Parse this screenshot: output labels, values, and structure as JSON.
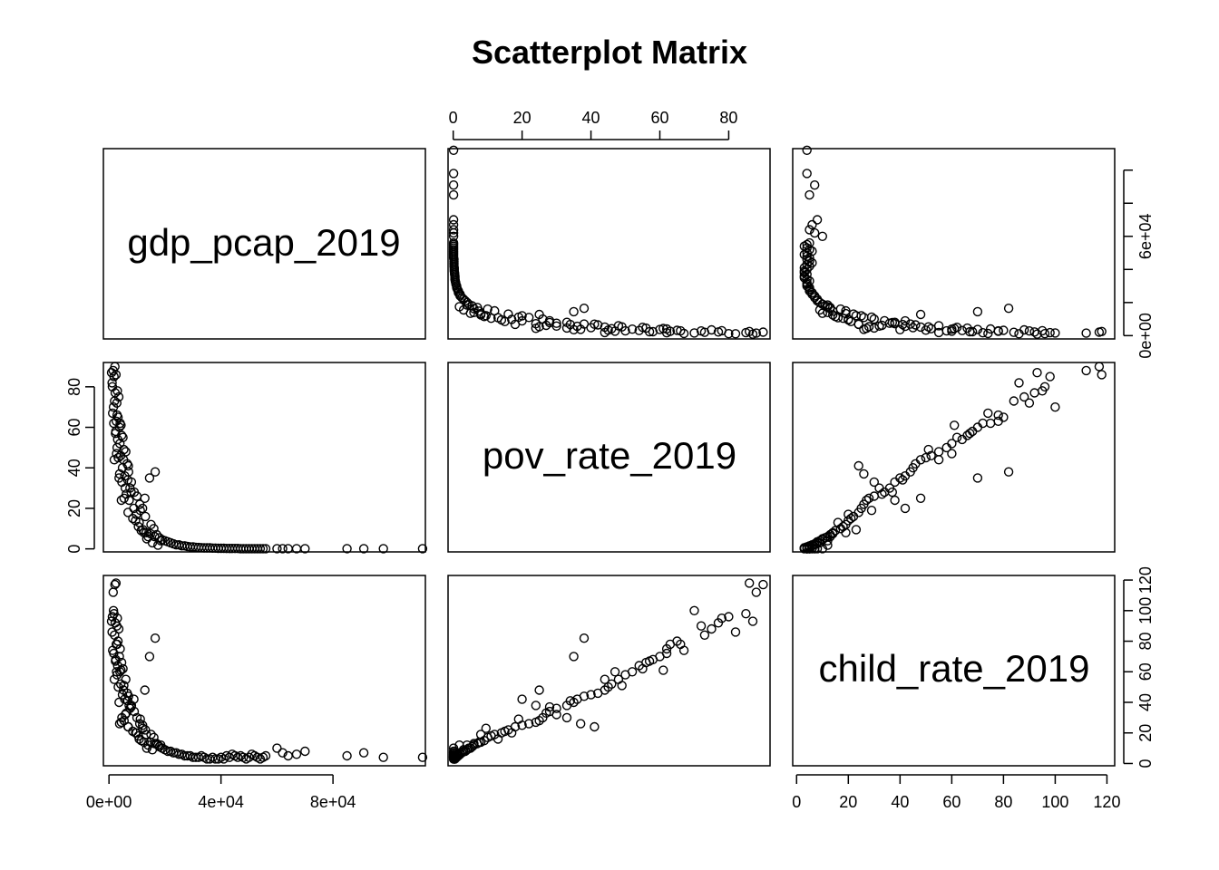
{
  "chart_data": {
    "type": "scatter",
    "title": "Scatterplot Matrix",
    "variables": [
      "gdp_pcap_2019",
      "pov_rate_2019",
      "child_rate_2019"
    ],
    "axes": {
      "gdp_pcap_2019": {
        "ticks": [
          0,
          40000,
          80000
        ],
        "tick_labels": [
          "0e+00",
          "4e+04",
          "8e+04"
        ],
        "right_ticks": [
          0,
          20000,
          40000,
          60000,
          80000,
          100000
        ],
        "right_labels": [
          "0e+00",
          "",
          "",
          "6e+04",
          "",
          ""
        ],
        "range": [
          -2000,
          113000
        ]
      },
      "pov_rate_2019": {
        "ticks": [
          0,
          20,
          40,
          60,
          80
        ],
        "tick_labels": [
          "0",
          "20",
          "40",
          "60",
          "80"
        ],
        "range": [
          -1.5,
          92
        ]
      },
      "child_rate_2019": {
        "ticks": [
          0,
          20,
          40,
          60,
          80,
          100,
          120
        ],
        "tick_labels": [
          "0",
          "20",
          "40",
          "60",
          "80",
          "100",
          "120"
        ],
        "range": [
          -1.5,
          123
        ]
      }
    },
    "marker": "open-circle",
    "grid": false,
    "points": [
      [
        1500,
        88,
        112
      ],
      [
        2100,
        90,
        117
      ],
      [
        1800,
        85,
        98
      ],
      [
        2500,
        86,
        118
      ],
      [
        1200,
        80,
        96
      ],
      [
        3000,
        78,
        95
      ],
      [
        2200,
        77,
        92
      ],
      [
        3500,
        75,
        88
      ],
      [
        2800,
        72,
        90
      ],
      [
        1600,
        70,
        100
      ],
      [
        3200,
        65,
        80
      ],
      [
        2600,
        63,
        78
      ],
      [
        4000,
        62,
        75
      ],
      [
        3700,
        60,
        70
      ],
      [
        2400,
        58,
        68
      ],
      [
        4500,
        56,
        66
      ],
      [
        5000,
        55,
        62
      ],
      [
        3900,
        52,
        60
      ],
      [
        2900,
        50,
        58
      ],
      [
        6000,
        48,
        55
      ],
      [
        4200,
        46,
        52
      ],
      [
        3300,
        45,
        50
      ],
      [
        5200,
        44,
        48
      ],
      [
        6500,
        42,
        46
      ],
      [
        4800,
        40,
        45
      ],
      [
        7000,
        38,
        44
      ],
      [
        5600,
        36,
        42
      ],
      [
        3600,
        35,
        40
      ],
      [
        8000,
        33,
        38
      ],
      [
        7500,
        30,
        36
      ],
      [
        9000,
        28,
        34
      ],
      [
        6200,
        27,
        33
      ],
      [
        10000,
        26,
        30
      ],
      [
        5400,
        25,
        28
      ],
      [
        4400,
        24,
        27
      ],
      [
        11000,
        22,
        26
      ],
      [
        12000,
        20,
        25
      ],
      [
        6800,
        18,
        24
      ],
      [
        13000,
        16,
        22
      ],
      [
        8500,
        15,
        21
      ],
      [
        9500,
        14,
        20
      ],
      [
        15000,
        12,
        19
      ],
      [
        10500,
        11,
        18
      ],
      [
        16000,
        10,
        17
      ],
      [
        11500,
        9,
        15
      ],
      [
        12500,
        8,
        14
      ],
      [
        17000,
        7,
        13
      ],
      [
        14000,
        6,
        12
      ],
      [
        18000,
        5.5,
        11
      ],
      [
        13500,
        5,
        10
      ],
      [
        19000,
        4.5,
        10
      ],
      [
        20000,
        4,
        9
      ],
      [
        21000,
        3.5,
        8
      ],
      [
        22000,
        3,
        8
      ],
      [
        15500,
        3,
        9
      ],
      [
        23000,
        2.5,
        7
      ],
      [
        24000,
        2,
        7
      ],
      [
        25000,
        2,
        6
      ],
      [
        17500,
        1.8,
        12
      ],
      [
        26000,
        1.5,
        6
      ],
      [
        27000,
        1.5,
        5
      ],
      [
        28000,
        1.2,
        5
      ],
      [
        29000,
        1,
        5
      ],
      [
        30000,
        1,
        4
      ],
      [
        31000,
        0.8,
        4
      ],
      [
        32000,
        0.7,
        4
      ],
      [
        33000,
        0.6,
        5
      ],
      [
        34000,
        0.5,
        4
      ],
      [
        35000,
        0.5,
        3
      ],
      [
        36000,
        0.5,
        3
      ],
      [
        37000,
        0.4,
        4
      ],
      [
        38000,
        0.4,
        3
      ],
      [
        39000,
        0.3,
        3
      ],
      [
        40000,
        0.3,
        4
      ],
      [
        41000,
        0.3,
        3
      ],
      [
        42000,
        0.2,
        5
      ],
      [
        43000,
        0.2,
        4
      ],
      [
        44000,
        0.2,
        6
      ],
      [
        45000,
        0.2,
        5
      ],
      [
        46000,
        0.2,
        4
      ],
      [
        47000,
        0.1,
        5
      ],
      [
        48000,
        0.1,
        4
      ],
      [
        49000,
        0.1,
        3
      ],
      [
        50000,
        0.1,
        4
      ],
      [
        51000,
        0.1,
        6
      ],
      [
        52000,
        0.1,
        5
      ],
      [
        53000,
        0.1,
        4
      ],
      [
        54000,
        0.1,
        3
      ],
      [
        55000,
        0.1,
        4
      ],
      [
        56000,
        0.1,
        5
      ],
      [
        60000,
        0.1,
        10
      ],
      [
        62000,
        0.1,
        7
      ],
      [
        64000,
        0.1,
        5
      ],
      [
        67000,
        0.1,
        6
      ],
      [
        70000,
        0.1,
        8
      ],
      [
        85000,
        0.1,
        5
      ],
      [
        91000,
        0.1,
        7
      ],
      [
        98000,
        0.1,
        4
      ],
      [
        112000,
        0.1,
        4
      ],
      [
        16500,
        38,
        82
      ],
      [
        14500,
        35,
        70
      ],
      [
        12800,
        25,
        48
      ],
      [
        8900,
        20,
        42
      ],
      [
        7200,
        24,
        38
      ],
      [
        5800,
        30,
        32
      ],
      [
        4600,
        33,
        30
      ],
      [
        3800,
        37,
        26
      ],
      [
        6900,
        41,
        24
      ],
      [
        9800,
        17,
        20
      ],
      [
        10800,
        13,
        16
      ],
      [
        1900,
        44,
        55
      ],
      [
        2700,
        47,
        60
      ],
      [
        3100,
        54,
        64
      ],
      [
        2300,
        57,
        67
      ],
      [
        1700,
        62,
        72
      ],
      [
        1300,
        67,
        74
      ],
      [
        2000,
        73,
        84
      ],
      [
        1100,
        82,
        86
      ],
      [
        900,
        87,
        93
      ],
      [
        2900,
        66,
        78
      ],
      [
        4300,
        61,
        61
      ],
      [
        5300,
        49,
        51
      ],
      [
        6700,
        34,
        41
      ],
      [
        7900,
        28,
        37
      ],
      [
        11200,
        19,
        29
      ],
      [
        12100,
        9.5,
        23
      ],
      [
        13300,
        8,
        19
      ],
      [
        14800,
        7.5,
        14
      ],
      [
        16300,
        6,
        13
      ],
      [
        18500,
        4,
        12
      ]
    ]
  }
}
